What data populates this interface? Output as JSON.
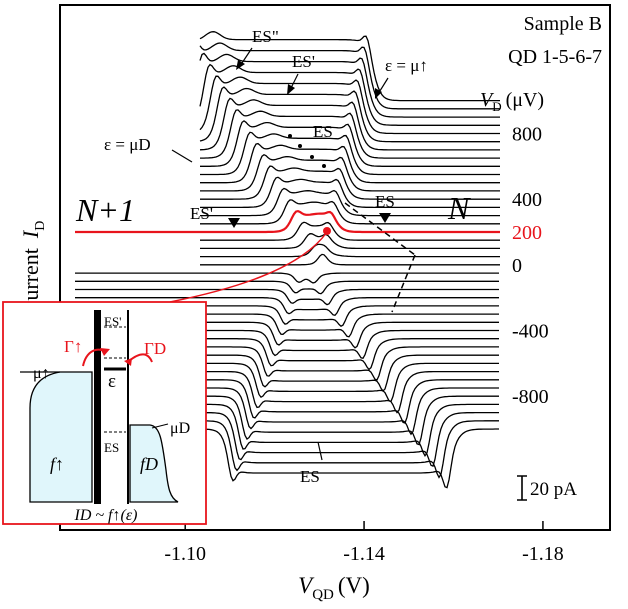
{
  "chart_data": {
    "type": "line",
    "title": "",
    "sample_label": "Sample B",
    "device_label": "QD 1-5-6-7",
    "xlabel_symbol": "V",
    "xlabel_sub": "QD",
    "xlabel_unit": "(V)",
    "ylabel_text": "Current",
    "ylabel_symbol": "I",
    "ylabel_sub": "D",
    "vd_symbol": "V",
    "vd_sub": "D",
    "vd_unit": "(μV)",
    "xlim": [
      -1.072,
      -1.195
    ],
    "xticks": [
      {
        "value": -1.1,
        "label": "-1.10"
      },
      {
        "value": -1.14,
        "label": "-1.14"
      },
      {
        "value": -1.18,
        "label": "-1.18"
      }
    ],
    "vd_labels": [
      {
        "vd": 800,
        "label": "800",
        "color": "#000000"
      },
      {
        "vd": 400,
        "label": "400",
        "color": "#000000"
      },
      {
        "vd": 200,
        "label": "200",
        "color": "#e8141c"
      },
      {
        "vd": 0,
        "label": "0",
        "color": "#000000"
      },
      {
        "vd": -400,
        "label": "-400",
        "color": "#000000"
      },
      {
        "vd": -800,
        "label": "-800",
        "color": "#000000"
      }
    ],
    "vd_range": [
      -1000,
      1000
    ],
    "n_traces": 41,
    "highlight_trace_vd": 200,
    "highlight_color": "#e8141c",
    "scale_bar_label": "20 pA",
    "region_left": "N+1",
    "region_right": "N",
    "annotations": {
      "es_double_prime": "ES\"",
      "es_prime_top": "ES'",
      "eps_mu_up": "ε = μ↑",
      "es_mid": "ES",
      "eps_mu_d": "ε = μD",
      "es_prime_left": "ES'",
      "es_right": "ES",
      "es_bottom": "ES"
    },
    "inset": {
      "gamma_up": "Γ↑",
      "gamma_d": "ΓD",
      "es_prime": "ES'",
      "es": "ES",
      "epsilon": "ε",
      "mu_up": "μ↑",
      "mu_d": "μD",
      "f_up": "f↑",
      "f_d": "fD",
      "formula": "ID ~ f↑(ε)",
      "border_color": "#e8141c",
      "fill_color": "#e0f6fb"
    }
  }
}
